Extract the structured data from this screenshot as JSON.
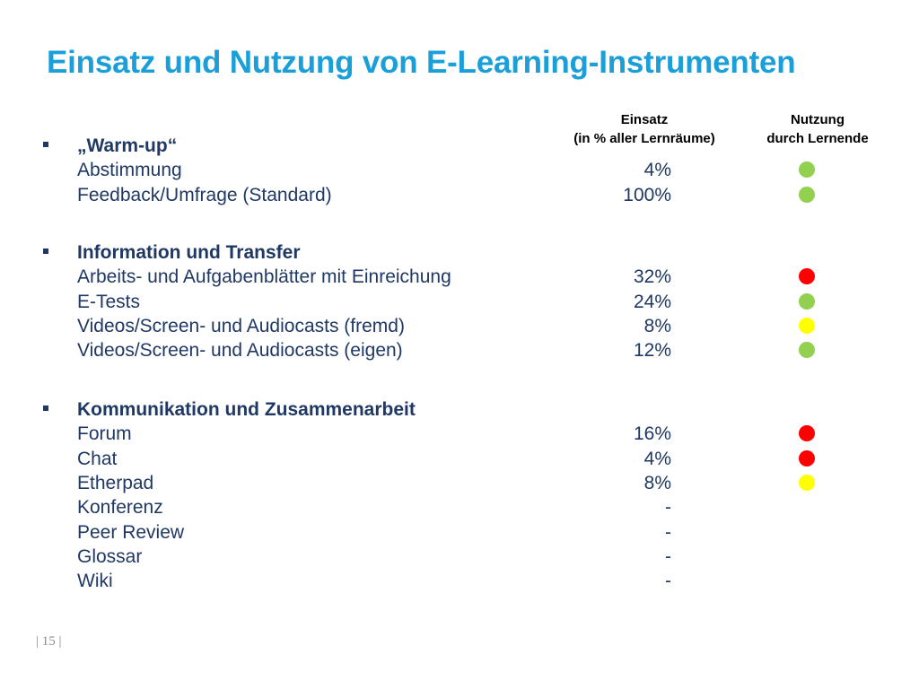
{
  "slide": {
    "title": "Einsatz und Nutzung von E-Learning-Instrumenten",
    "page_number": "| 15 |"
  },
  "columns": {
    "einsatz": [
      "Einsatz",
      "(in % aller Lernräume)"
    ],
    "nutzung": [
      "Nutzung",
      "durch Lernende"
    ]
  },
  "status_colors": {
    "green": "#92d050",
    "red": "#ff0000",
    "yellow": "#ffff00"
  },
  "sections": [
    {
      "heading": "„Warm-up“",
      "items": [
        {
          "label": "Abstimmung",
          "einsatz": "4%",
          "nutzung": "green"
        },
        {
          "label": "Feedback/Umfrage (Standard)",
          "einsatz": "100%",
          "nutzung": "green"
        }
      ]
    },
    {
      "heading": "Information und Transfer",
      "items": [
        {
          "label": "Arbeits- und Aufgabenblätter mit Einreichung",
          "einsatz": "32%",
          "nutzung": "red"
        },
        {
          "label": "E-Tests",
          "einsatz": "24%",
          "nutzung": "green"
        },
        {
          "label": "Videos/Screen- und Audiocasts (fremd)",
          "einsatz": "8%",
          "nutzung": "yellow"
        },
        {
          "label": "Videos/Screen- und Audiocasts (eigen)",
          "einsatz": "12%",
          "nutzung": "green"
        }
      ]
    },
    {
      "heading": "Kommunikation und Zusammenarbeit",
      "items": [
        {
          "label": "Forum",
          "einsatz": "16%",
          "nutzung": "red"
        },
        {
          "label": "Chat",
          "einsatz": "4%",
          "nutzung": "red"
        },
        {
          "label": "Etherpad",
          "einsatz": "8%",
          "nutzung": "yellow"
        },
        {
          "label": "Konferenz",
          "einsatz": "-",
          "nutzung": null
        },
        {
          "label": "Peer Review",
          "einsatz": "-",
          "nutzung": null
        },
        {
          "label": "Glossar",
          "einsatz": "-",
          "nutzung": null
        },
        {
          "label": "Wiki",
          "einsatz": "-",
          "nutzung": null
        }
      ]
    }
  ]
}
